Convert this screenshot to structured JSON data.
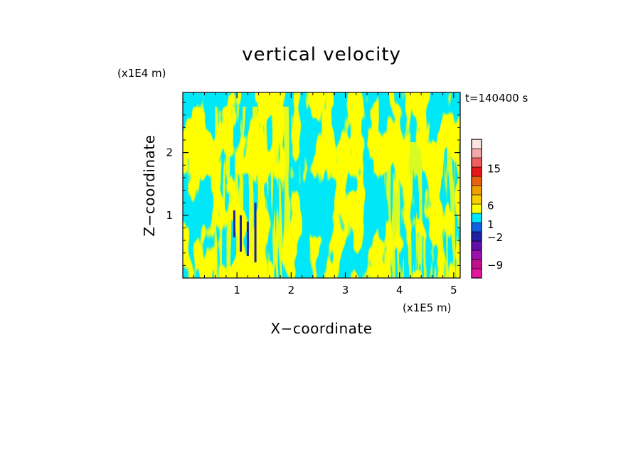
{
  "chart_data": {
    "type": "heatmap",
    "title": "vertical velocity",
    "xlabel": "X−coordinate",
    "ylabel": "Z−coordinate",
    "x_scale_label": "(x1E5 m)",
    "y_scale_label": "(x1E4 m)",
    "time_label": "t=140400 s",
    "xlim": [
      0,
      5.12
    ],
    "ylim": [
      0,
      2.96
    ],
    "x_ticks": [
      "1",
      "2",
      "3",
      "4",
      "5"
    ],
    "x_tick_values": [
      1,
      2,
      3,
      4,
      5
    ],
    "y_ticks": [
      "1",
      "2"
    ],
    "y_tick_values": [
      1,
      2
    ],
    "colorbar": {
      "levels": [
        {
          "color": "#e4179c"
        },
        {
          "color": "#c0108c"
        },
        {
          "color": "#9c10ac"
        },
        {
          "color": "#6010a8"
        },
        {
          "color": "#2020a0"
        },
        {
          "color": "#1060e0"
        },
        {
          "color": "#00e8f8"
        },
        {
          "color": "#ffff00"
        },
        {
          "color": "#f8d000"
        },
        {
          "color": "#f0a000"
        },
        {
          "color": "#e86010"
        },
        {
          "color": "#e81818"
        },
        {
          "color": "#f06060"
        },
        {
          "color": "#f4a8a8"
        },
        {
          "color": "#fce4e0"
        }
      ],
      "labels": [
        {
          "text": "15",
          "pos": 0.786
        },
        {
          "text": "6",
          "pos": 0.52
        },
        {
          "text": "1",
          "pos": 0.385
        },
        {
          "text": "−2",
          "pos": 0.293
        },
        {
          "text": "−9",
          "pos": 0.092
        }
      ]
    },
    "colors": {
      "positive": "#ffff00",
      "negative": "#00e8f8",
      "strong_negative": "#2020a0"
    }
  }
}
